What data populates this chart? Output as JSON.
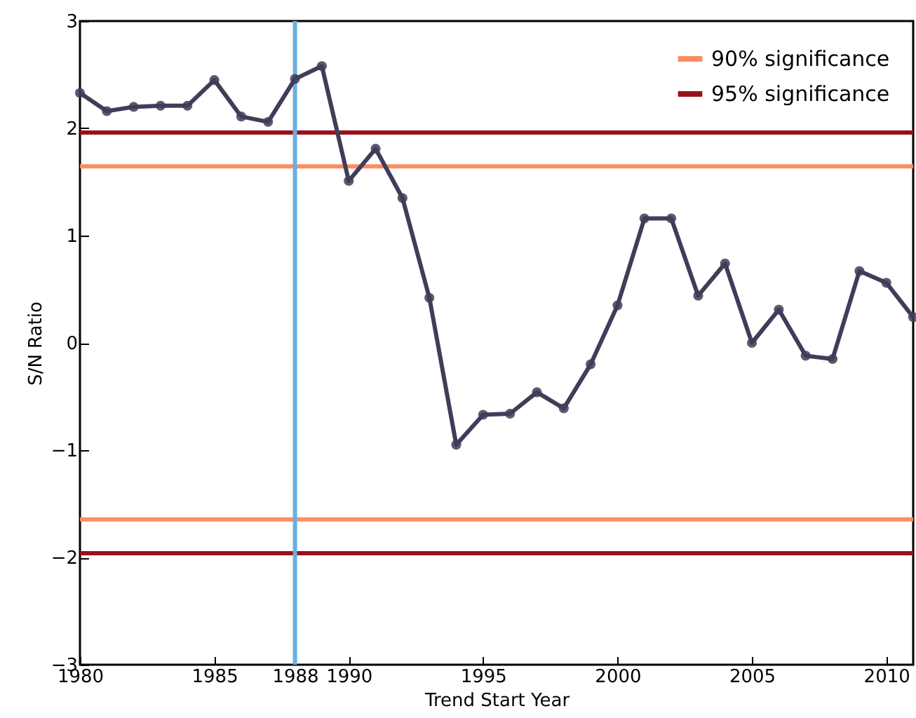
{
  "chart_data": {
    "type": "line",
    "xlabel": "Trend Start Year",
    "ylabel": "S/N Ratio",
    "x": [
      1980,
      1981,
      1982,
      1983,
      1984,
      1985,
      1986,
      1987,
      1988,
      1989,
      1990,
      1991,
      1992,
      1993,
      1994,
      1995,
      1996,
      1997,
      1998,
      1999,
      2000,
      2001,
      2002,
      2003,
      2004,
      2005,
      2006,
      2007,
      2008,
      2009,
      2010,
      2011
    ],
    "series": [
      {
        "color": "#403d58",
        "values": [
          2.33,
          2.16,
          2.2,
          2.21,
          2.21,
          2.45,
          2.11,
          2.06,
          2.46,
          2.58,
          1.51,
          1.81,
          1.35,
          0.42,
          -0.95,
          -0.67,
          -0.66,
          -0.46,
          -0.61,
          -0.2,
          0.35,
          1.16,
          1.16,
          0.44,
          0.74,
          0.0,
          0.31,
          -0.12,
          -0.15,
          0.67,
          0.56,
          0.24
        ]
      }
    ],
    "xlim": [
      1980,
      2011
    ],
    "xticks": [
      1980,
      1985,
      1988,
      1990,
      1995,
      2000,
      2005,
      2010
    ],
    "ylim": [
      -3,
      3
    ],
    "yticks": [
      -3,
      -2,
      -1,
      0,
      1,
      2,
      3
    ],
    "ref_lines": [
      {
        "axis": "y",
        "value": 1.645,
        "label": "90% significance",
        "color": "#fc8d62"
      },
      {
        "axis": "y",
        "value": 1.96,
        "label": "95% significance",
        "color": "#99101a"
      },
      {
        "axis": "y",
        "value": -1.645,
        "color": "#fc8d62"
      },
      {
        "axis": "y",
        "value": -1.96,
        "color": "#99101a"
      },
      {
        "axis": "x",
        "value": 1988,
        "color": "#6aafe0"
      }
    ],
    "marker": "circle",
    "grid": false,
    "legend": "top right"
  }
}
